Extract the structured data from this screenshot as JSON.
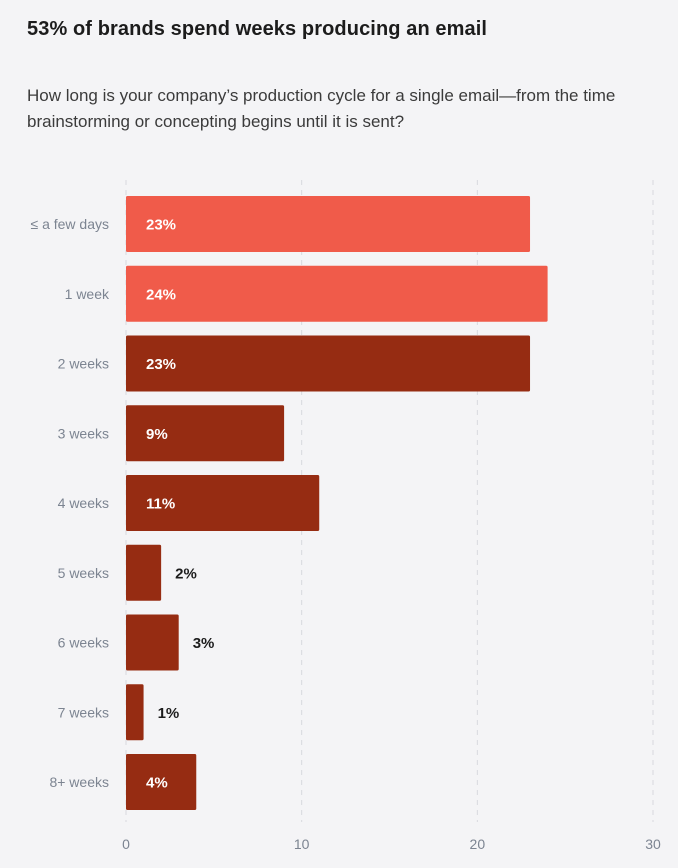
{
  "title": "53% of brands spend weeks producing an email",
  "subtitle": "How long is your company’s production cycle for a single email—from the time brainstorming or concepting begins until it is sent?",
  "colors": {
    "highlight": "#f05b4a",
    "base": "#962c12",
    "grid": "#d7d9de",
    "background": "#f4f4f6",
    "label_inside": "#ffffff",
    "label_outside": "#1c1c1c",
    "axis_text": "#7c8491"
  },
  "chart_data": {
    "type": "bar",
    "orientation": "horizontal",
    "categories": [
      "≤ a few days",
      "1 week",
      "2 weeks",
      "3 weeks",
      "4 weeks",
      "5 weeks",
      "6 weeks",
      "7 weeks",
      "8+ weeks"
    ],
    "values": [
      23,
      24,
      23,
      9,
      11,
      2,
      3,
      1,
      4
    ],
    "value_labels": [
      "23%",
      "24%",
      "23%",
      "9%",
      "11%",
      "2%",
      "3%",
      "1%",
      "4%"
    ],
    "highlighted": [
      true,
      true,
      false,
      false,
      false,
      false,
      false,
      false,
      false
    ],
    "xlim": [
      0,
      30
    ],
    "xticks": [
      0,
      10,
      20,
      30
    ],
    "grid": true,
    "xlabel": "",
    "ylabel": ""
  }
}
